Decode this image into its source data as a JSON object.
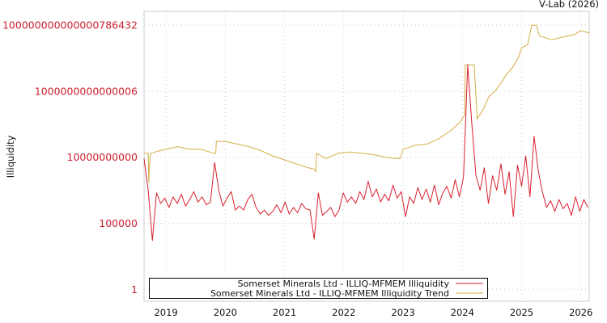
{
  "header": {
    "credit": "V-Lab (2026)"
  },
  "chart_data": {
    "type": "line",
    "title": "",
    "xlabel": "",
    "ylabel": "Illiquidity",
    "y_scale": "log10",
    "y_values_are_log10": true,
    "xlim": [
      2018.63,
      2026.14
    ],
    "ylim_log10": [
      -0.9,
      21.05
    ],
    "grid": true,
    "legend_position": "bottom-left",
    "x_ticks": [
      2019,
      2020,
      2021,
      2022,
      2023,
      2024,
      2025,
      2026
    ],
    "x_tick_labels": [
      "2019",
      "2020",
      "2021",
      "2022",
      "2023",
      "2024",
      "2025",
      "2026"
    ],
    "y_ticks_log10": [
      0,
      5,
      10,
      15,
      20
    ],
    "y_tick_labels": [
      "1",
      "100000",
      "10000000000",
      "1000000000000006",
      "100000000000000786432"
    ],
    "series": [
      {
        "name": "Somerset Minerals Ltd - ILLIQ-MFMEM Illiquidity",
        "color": "#d9202f",
        "x_start": 2018.63,
        "x_step": 0.07,
        "values_log10": [
          9.9,
          7.5,
          3.7,
          7.3,
          6.5,
          6.9,
          6.2,
          7.0,
          6.5,
          7.2,
          6.3,
          6.8,
          7.4,
          6.6,
          7.0,
          6.4,
          6.6,
          9.6,
          7.5,
          6.3,
          6.9,
          7.4,
          6.0,
          6.3,
          6.0,
          6.8,
          7.2,
          6.2,
          5.7,
          6.0,
          5.6,
          5.9,
          6.4,
          5.8,
          6.6,
          5.7,
          6.2,
          5.8,
          6.5,
          6.1,
          6.0,
          3.8,
          7.3,
          5.6,
          5.9,
          6.2,
          5.5,
          6.0,
          7.3,
          6.6,
          7.0,
          6.5,
          7.4,
          6.8,
          8.2,
          7.0,
          7.6,
          6.6,
          7.2,
          6.7,
          7.9,
          6.9,
          7.4,
          5.5,
          7.0,
          6.5,
          7.7,
          6.8,
          7.6,
          6.6,
          7.9,
          6.4,
          7.3,
          7.8,
          6.9,
          8.3,
          7.0,
          8.5,
          17.0,
          12.5,
          8.6,
          7.5,
          9.2,
          6.5,
          8.6,
          7.5,
          9.5,
          7.2,
          8.9,
          5.5,
          9.4,
          7.8,
          10.1,
          7.0,
          11.6,
          9.0,
          7.4,
          6.2,
          6.7,
          5.9,
          6.8,
          6.1,
          6.5,
          5.6,
          7.0,
          5.9,
          6.8,
          6.2
        ]
      },
      {
        "name": "Somerset Minerals Ltd - ILLIQ-MFMEM Illiquidity Trend",
        "color": "#d4ae45",
        "x": [
          2018.63,
          2018.7,
          2018.71,
          2018.73,
          2018.75,
          2018.9,
          2019.0,
          2019.2,
          2019.4,
          2019.6,
          2019.8,
          2019.84,
          2019.85,
          2020.0,
          2020.2,
          2020.4,
          2020.6,
          2020.8,
          2021.0,
          2021.2,
          2021.4,
          2021.5,
          2021.53,
          2021.54,
          2021.7,
          2021.9,
          2022.1,
          2022.3,
          2022.5,
          2022.7,
          2022.9,
          2022.95,
          2023.0,
          2023.2,
          2023.4,
          2023.6,
          2023.8,
          2023.95,
          2024.04,
          2024.05,
          2024.2,
          2024.25,
          2024.35,
          2024.45,
          2024.55,
          2024.65,
          2024.75,
          2024.85,
          2024.95,
          2025.0,
          2025.1,
          2025.17,
          2025.25,
          2025.3,
          2025.5,
          2025.7,
          2025.9,
          2026.0,
          2026.14
        ],
        "values_log10": [
          10.3,
          10.3,
          8.1,
          10.0,
          10.3,
          10.5,
          10.6,
          10.8,
          10.6,
          10.6,
          10.3,
          10.3,
          11.2,
          11.2,
          11.0,
          10.8,
          10.5,
          10.1,
          9.8,
          9.5,
          9.2,
          9.1,
          8.9,
          10.3,
          9.9,
          10.3,
          10.4,
          10.3,
          10.2,
          10.0,
          9.9,
          9.9,
          10.6,
          10.9,
          11.0,
          11.4,
          12.0,
          12.6,
          13.2,
          17.0,
          17.0,
          12.9,
          13.6,
          14.6,
          15.0,
          15.6,
          16.3,
          16.8,
          17.6,
          18.3,
          18.5,
          20.0,
          20.0,
          19.2,
          18.9,
          19.1,
          19.3,
          19.6,
          19.4
        ]
      }
    ]
  }
}
